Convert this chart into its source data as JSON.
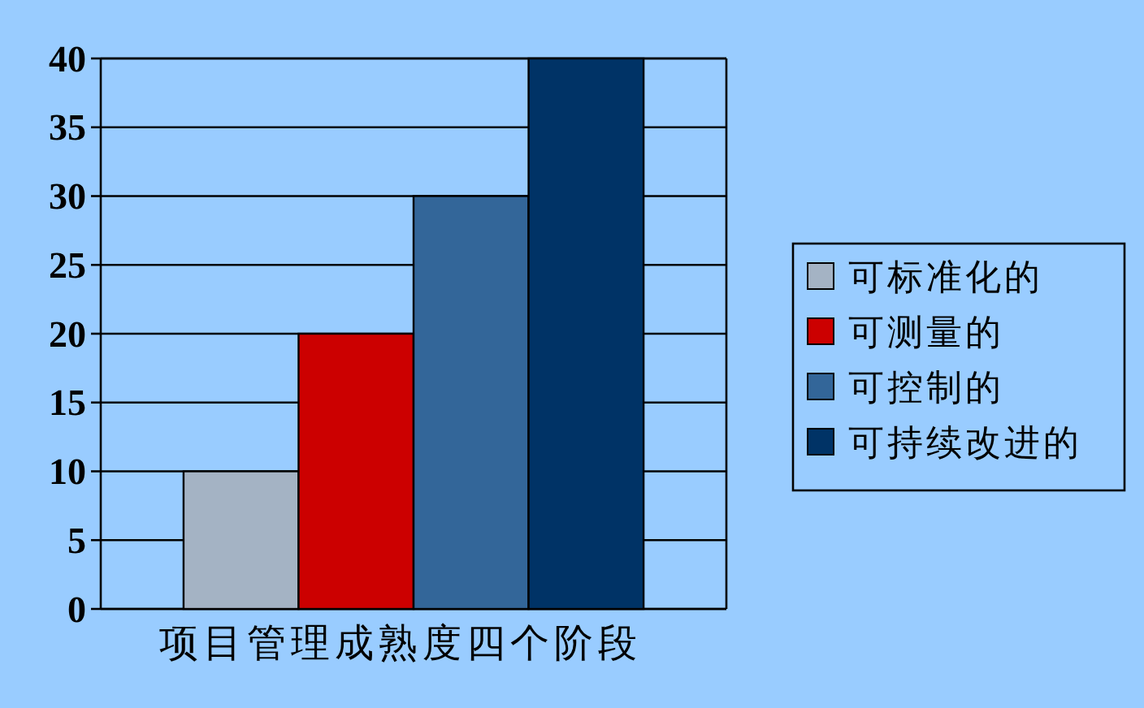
{
  "chart_data": {
    "type": "bar",
    "categories": [
      null,
      null,
      null,
      null
    ],
    "xlabel": "项目管理成熟度四个阶段",
    "stacked": true,
    "series": [
      {
        "name": "可标准化的",
        "color": "#a4b3c4",
        "values": [
          10,
          null,
          null,
          null
        ]
      },
      {
        "name": "可测量的",
        "color": "#cc0000",
        "values": [
          null,
          20,
          null,
          null
        ]
      },
      {
        "name": "可控制的",
        "color": "#336699",
        "values": [
          null,
          null,
          30,
          null
        ]
      },
      {
        "name": "可持续改进的",
        "color": "#003366",
        "values": [
          null,
          null,
          null,
          40
        ]
      }
    ],
    "ylim": [
      0,
      40
    ],
    "yticks": [
      0,
      5,
      10,
      15,
      20,
      25,
      30,
      35,
      40
    ],
    "grid": "y",
    "legend": "right",
    "tick_labels": "y"
  }
}
